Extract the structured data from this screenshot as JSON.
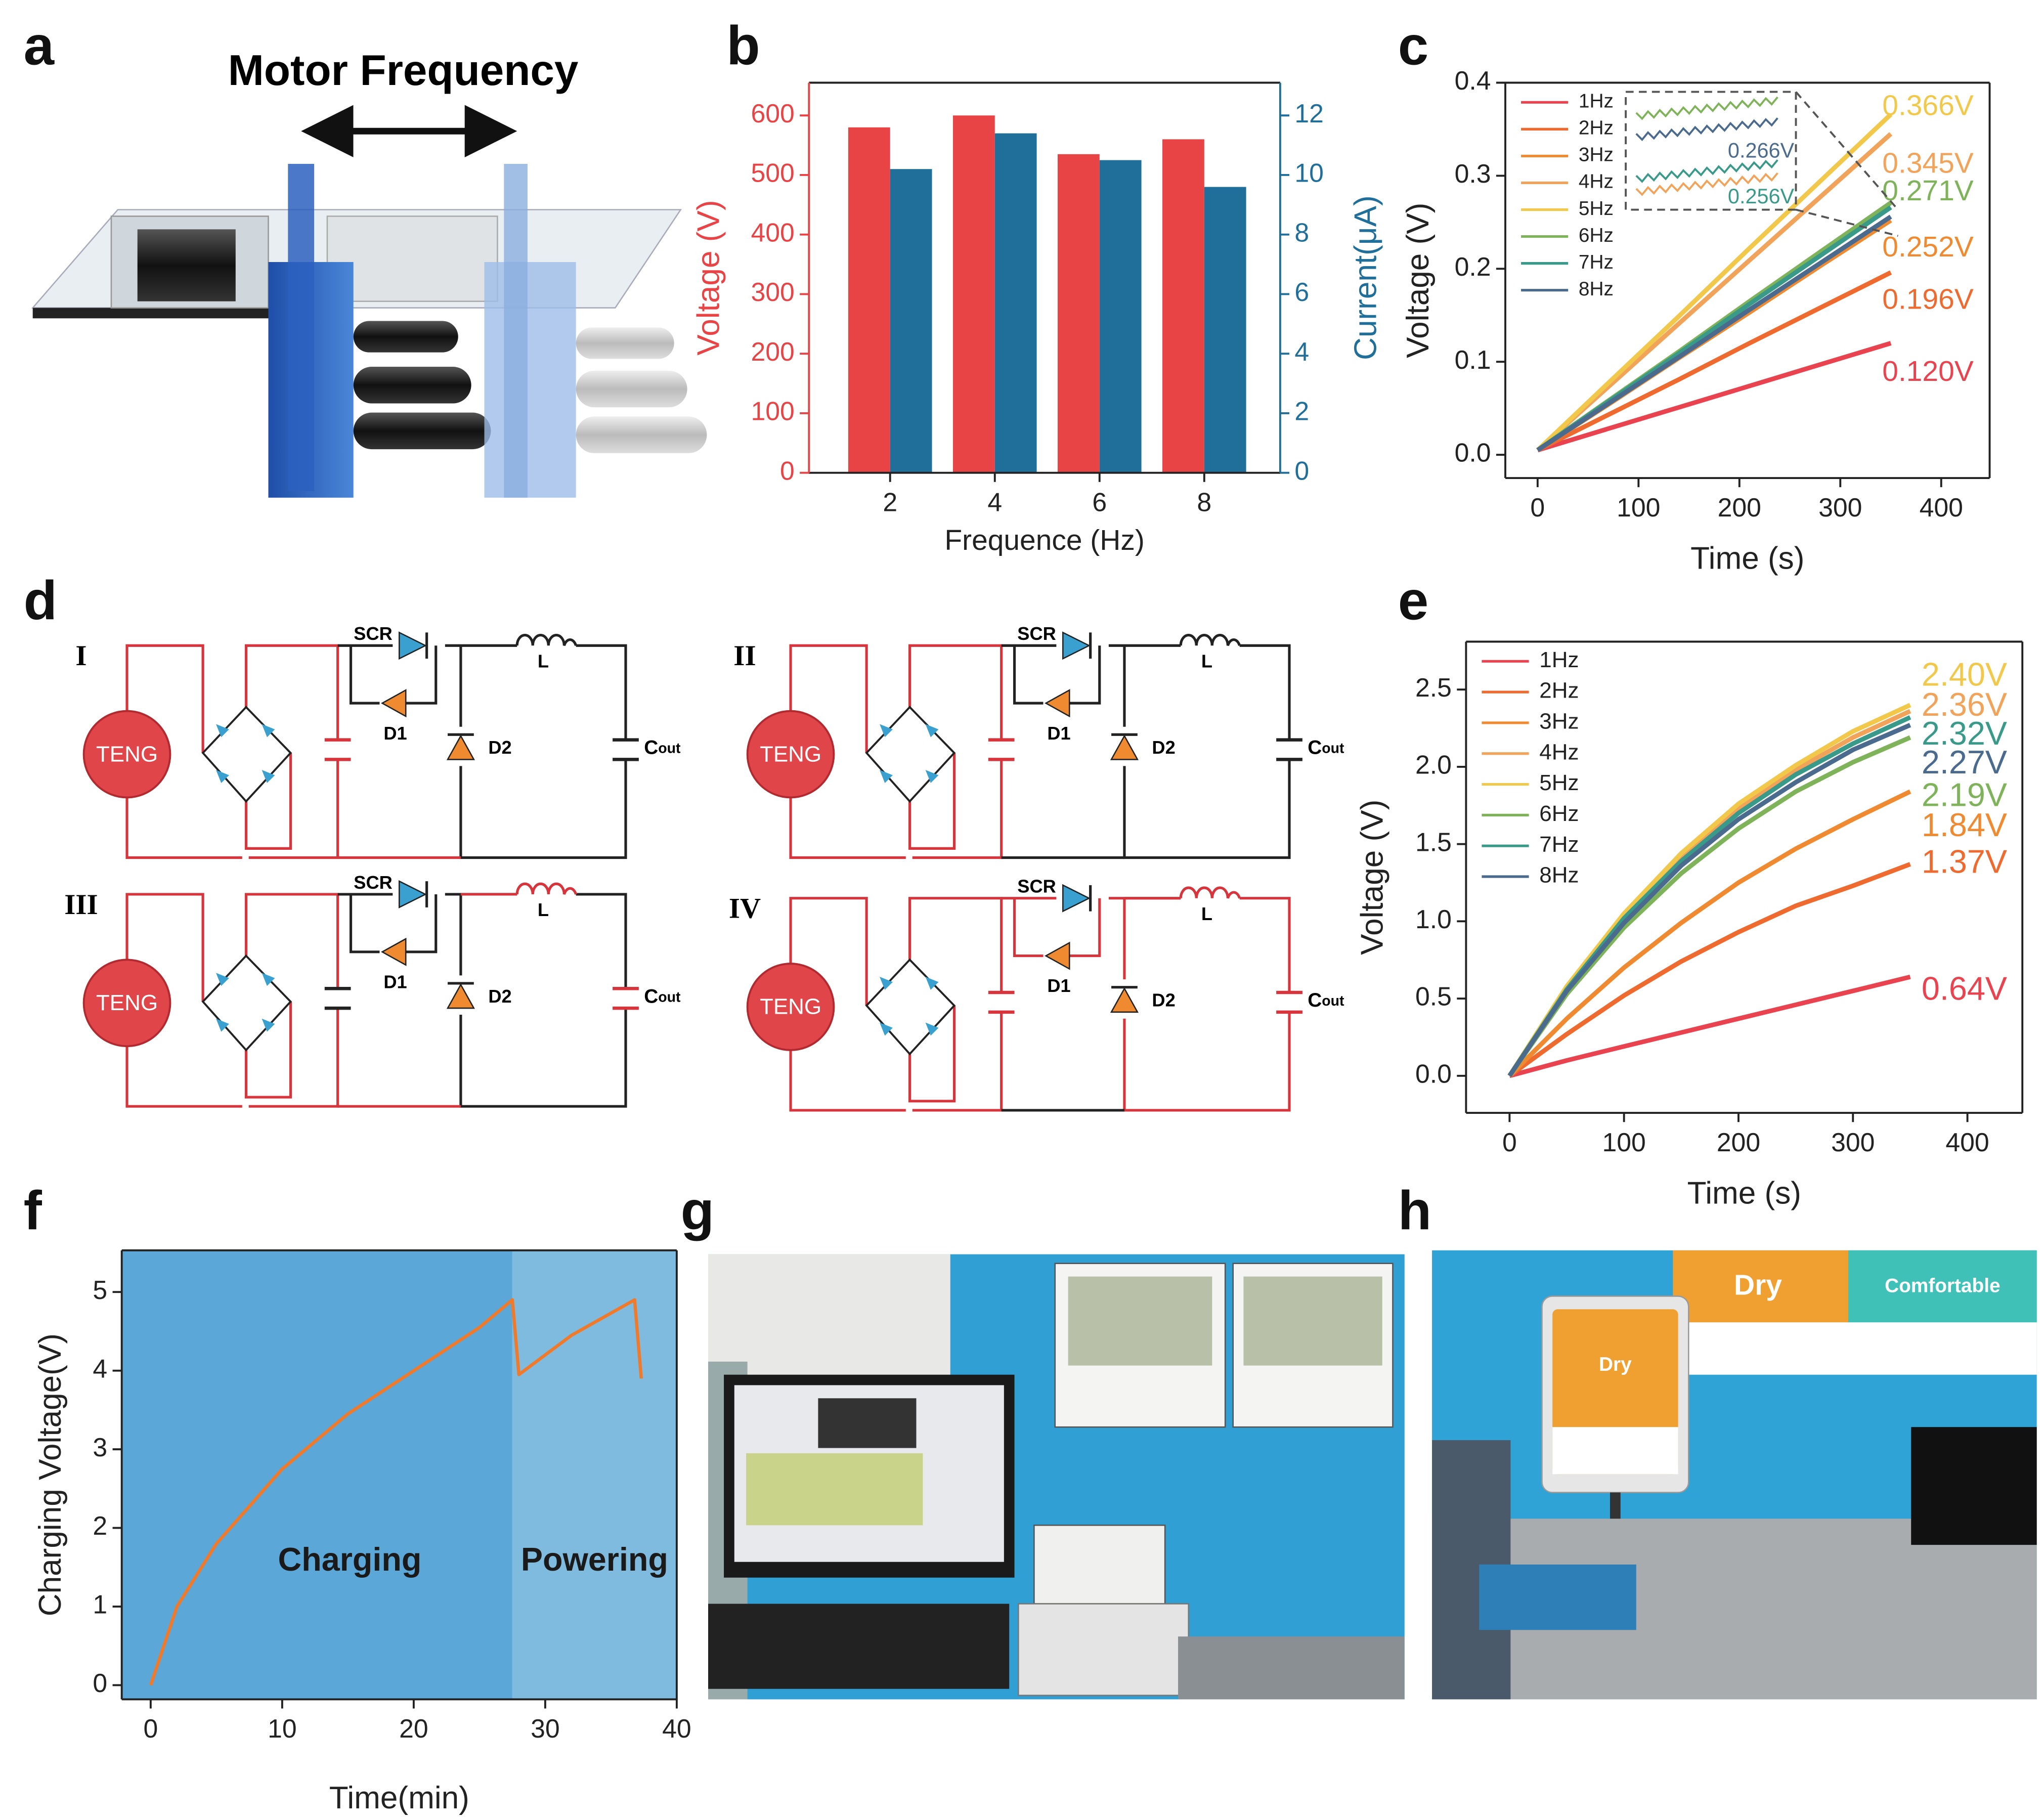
{
  "panels": [
    "a",
    "b",
    "c",
    "d",
    "e",
    "f",
    "g",
    "h"
  ],
  "panel_a": {
    "title": "Motor Frequency"
  },
  "circuits": {
    "labels": [
      "I",
      "II",
      "III",
      "IV"
    ],
    "source": "TENG",
    "scr": "SCR",
    "d1": "D1",
    "d2": "D2",
    "inductor": "L",
    "cap": "C",
    "cap_sub": "out"
  },
  "photo_h": {
    "labels": [
      "Dry",
      "Comfortable",
      "Dry"
    ]
  },
  "chart_data": [
    {
      "type": "bar",
      "xlabel": "Frequence (Hz)",
      "ylabel": "Voltage (V)",
      "y2label": "Current(μA)",
      "x": [
        2,
        4,
        6,
        8
      ],
      "xlim": [
        0.45,
        9.45
      ],
      "xticks": [
        2,
        4,
        6,
        8
      ],
      "ylim": [
        0,
        655
      ],
      "yticks": [
        0,
        100,
        200,
        300,
        400,
        500,
        600
      ],
      "y2lim": [
        0,
        13.1
      ],
      "y2ticks": [
        0,
        2,
        4,
        6,
        8,
        10,
        12
      ],
      "series": [
        {
          "name": "Voltage",
          "color": "#e84446",
          "values": [
            580,
            600,
            535,
            560
          ]
        },
        {
          "name": "Current",
          "color": "#1f6f9a",
          "axis": "y2",
          "values": [
            10.2,
            11.4,
            10.5,
            9.6
          ]
        }
      ]
    },
    {
      "type": "line",
      "xlabel": "Time (s)",
      "ylabel": "Voltage (V)",
      "x": [
        0,
        70,
        140,
        210,
        280,
        350
      ],
      "xlim": [
        -32,
        448
      ],
      "xticks": [
        0,
        100,
        200,
        300,
        400
      ],
      "ylim": [
        -0.025,
        0.4
      ],
      "yticks": [
        {
          "value": 0,
          "label": "0.0"
        },
        0.1,
        0.2,
        0.3,
        0.4
      ],
      "legend": "upper left",
      "series": [
        {
          "name": "1Hz",
          "color": "#e8434f",
          "values": [
            0.005,
            0.028,
            0.051,
            0.074,
            0.097,
            0.12
          ]
        },
        {
          "name": "2Hz",
          "color": "#ee6a2e",
          "values": [
            0.005,
            0.043,
            0.081,
            0.12,
            0.158,
            0.196
          ]
        },
        {
          "name": "3Hz",
          "color": "#f08a30",
          "values": [
            0.005,
            0.054,
            0.104,
            0.153,
            0.203,
            0.252
          ]
        },
        {
          "name": "4Hz",
          "color": "#f2a35a",
          "values": [
            0.005,
            0.073,
            0.141,
            0.209,
            0.277,
            0.345
          ]
        },
        {
          "name": "5Hz",
          "color": "#f2c84b",
          "values": [
            0.005,
            0.077,
            0.149,
            0.222,
            0.294,
            0.366
          ]
        },
        {
          "name": "6Hz",
          "color": "#7fb35a",
          "values": [
            0.005,
            0.058,
            0.111,
            0.165,
            0.218,
            0.271
          ]
        },
        {
          "name": "7Hz",
          "color": "#3a9a8a",
          "values": [
            0.005,
            0.057,
            0.109,
            0.162,
            0.214,
            0.266
          ]
        },
        {
          "name": "8Hz",
          "color": "#4a6a8e",
          "values": [
            0.005,
            0.055,
            0.105,
            0.156,
            0.206,
            0.256
          ]
        }
      ],
      "annotations": [
        {
          "text": "0.366V",
          "color": "#f2c84b"
        },
        {
          "text": "0.345V",
          "color": "#f2a35a"
        },
        {
          "text": "0.271V",
          "color": "#7fb35a"
        },
        {
          "text": "0.252V",
          "color": "#f08a30"
        },
        {
          "text": "0.196V",
          "color": "#ee6a2e"
        },
        {
          "text": "0.120V",
          "color": "#e8434f"
        }
      ],
      "inset_labels": [
        "0.266V",
        "0.256V"
      ]
    },
    {
      "type": "line",
      "xlabel": "Time (s)",
      "ylabel": "Voltage (V)",
      "x": [
        0,
        50,
        100,
        150,
        200,
        250,
        300,
        350
      ],
      "xlim": [
        -38,
        448
      ],
      "xticks": [
        0,
        100,
        200,
        300,
        400
      ],
      "ylim": [
        -0.24,
        2.81
      ],
      "yticks": [
        {
          "value": 0,
          "label": "0.0"
        },
        0.5,
        {
          "value": 1,
          "label": "1.0"
        },
        1.5,
        {
          "value": 2,
          "label": "2.0"
        },
        2.5
      ],
      "legend": "upper left",
      "series": [
        {
          "name": "1Hz",
          "color": "#e8434f",
          "values": [
            0,
            0.1,
            0.19,
            0.28,
            0.37,
            0.46,
            0.55,
            0.64
          ]
        },
        {
          "name": "2Hz",
          "color": "#ee6a2e",
          "values": [
            0,
            0.27,
            0.52,
            0.74,
            0.93,
            1.1,
            1.23,
            1.37
          ]
        },
        {
          "name": "3Hz",
          "color": "#f08a30",
          "values": [
            0,
            0.37,
            0.7,
            0.99,
            1.25,
            1.47,
            1.66,
            1.84
          ]
        },
        {
          "name": "4Hz",
          "color": "#f2a35a",
          "values": [
            0,
            0.57,
            1.03,
            1.41,
            1.73,
            1.98,
            2.19,
            2.36
          ]
        },
        {
          "name": "5Hz",
          "color": "#f2c84b",
          "values": [
            0,
            0.58,
            1.05,
            1.44,
            1.76,
            2.01,
            2.23,
            2.4
          ]
        },
        {
          "name": "6Hz",
          "color": "#7fb35a",
          "values": [
            0,
            0.53,
            0.96,
            1.31,
            1.6,
            1.84,
            2.03,
            2.19
          ]
        },
        {
          "name": "7Hz",
          "color": "#3a9a8a",
          "values": [
            0,
            0.56,
            1.02,
            1.39,
            1.7,
            1.95,
            2.15,
            2.32
          ]
        },
        {
          "name": "8Hz",
          "color": "#4a6a8e",
          "values": [
            0,
            0.55,
            0.99,
            1.36,
            1.66,
            1.9,
            2.11,
            2.27
          ]
        }
      ],
      "annotations": [
        {
          "text": "2.40V",
          "color": "#f2c84b"
        },
        {
          "text": "2.36V",
          "color": "#f2a35a"
        },
        {
          "text": "2.32V",
          "color": "#3a9a8a"
        },
        {
          "text": "2.27V",
          "color": "#4a6a8e"
        },
        {
          "text": "2.19V",
          "color": "#7fb35a"
        },
        {
          "text": "1.84V",
          "color": "#f08a30"
        },
        {
          "text": "1.37V",
          "color": "#ee6a2e"
        },
        {
          "text": "0.64V",
          "color": "#e8434f"
        }
      ]
    },
    {
      "type": "line",
      "xlabel": "Time(min)",
      "ylabel": "Charging Voltage(V)",
      "x": [
        0,
        2,
        5,
        10,
        15,
        20,
        25,
        27.5,
        28,
        32,
        36.8,
        37.3
      ],
      "xlim": [
        -2.2,
        40
      ],
      "xticks": [
        0,
        10,
        20,
        30,
        40
      ],
      "ylim": [
        -0.18,
        5.53
      ],
      "yticks": [
        0,
        1,
        2,
        3,
        4,
        5
      ],
      "series": [
        {
          "color": "#f07a2a",
          "values": [
            0,
            1.0,
            1.8,
            2.75,
            3.45,
            4.0,
            4.55,
            4.9,
            3.95,
            4.45,
            4.9,
            3.9
          ]
        }
      ],
      "regions": [
        {
          "label": "Charging",
          "start": -2.2,
          "end": 27.5,
          "color": "#5aa7d8"
        },
        {
          "label": "Powering",
          "start": 27.5,
          "end": 40,
          "color": "#7fbbde"
        }
      ]
    }
  ]
}
